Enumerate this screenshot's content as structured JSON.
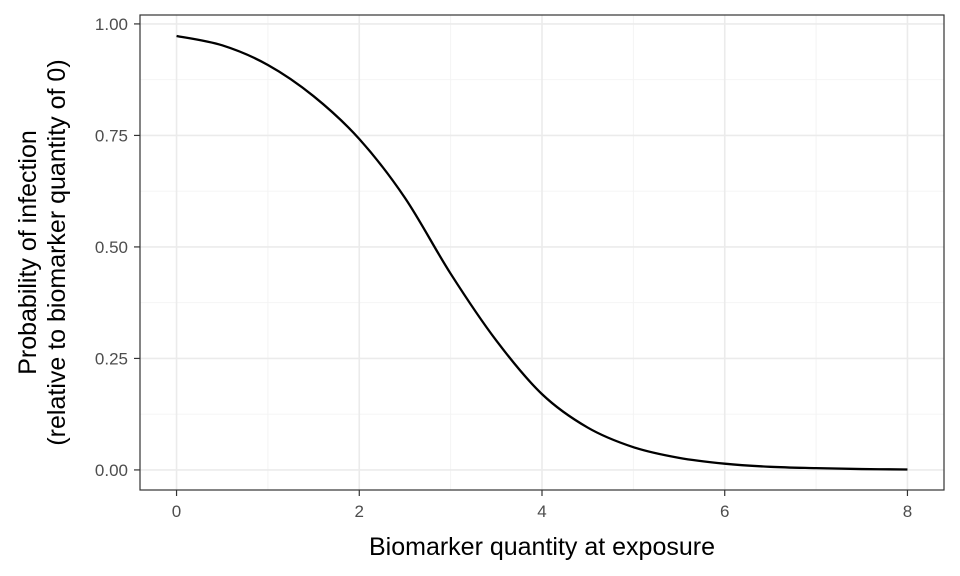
{
  "chart_data": {
    "type": "line",
    "title": "",
    "xlabel": "Biomarker quantity at exposure",
    "ylabel_lines": [
      "Probability of infection",
      "(relative to biomarker quantity of 0)"
    ],
    "xlim": [
      -0.4,
      8.4
    ],
    "ylim": [
      -0.045,
      1.02
    ],
    "x_ticks": [
      0,
      2,
      4,
      6,
      8
    ],
    "x_tick_labels": [
      "0",
      "2",
      "4",
      "6",
      "8"
    ],
    "y_ticks": [
      0,
      0.25,
      0.5,
      0.75,
      1.0
    ],
    "y_tick_labels": [
      "0.00",
      "0.25",
      "0.50",
      "0.75",
      "1.00"
    ],
    "x_minor": [
      1,
      3,
      5,
      7
    ],
    "y_minor": [
      0.125,
      0.375,
      0.625,
      0.875
    ],
    "grid": true,
    "legend": "none",
    "series": [
      {
        "x": [
          0,
          0.5,
          1,
          1.5,
          2,
          2.5,
          3,
          3.5,
          4,
          4.5,
          5,
          5.5,
          6,
          6.5,
          7,
          7.5,
          8
        ],
        "y": [
          0.973,
          0.952,
          0.908,
          0.838,
          0.742,
          0.61,
          0.44,
          0.29,
          0.17,
          0.095,
          0.051,
          0.027,
          0.014,
          0.007,
          0.004,
          0.002,
          0.001
        ],
        "color": "#000000"
      }
    ]
  }
}
